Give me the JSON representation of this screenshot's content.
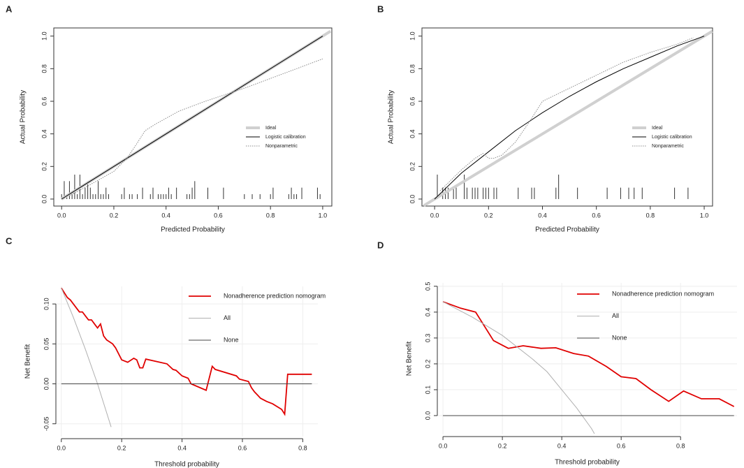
{
  "chart_data": [
    {
      "panel": "A",
      "type": "calibration",
      "xlabel": "Predicted Probability",
      "ylabel": "Actual Probability",
      "xlim": [
        -0.03,
        1.035
      ],
      "ylim": [
        -0.043,
        1.05
      ],
      "xticks": [
        {
          "value": 0,
          "label": "0.0"
        },
        0.2,
        0.4,
        0.6,
        0.8,
        {
          "value": 1,
          "label": "1.0"
        }
      ],
      "yticks": [
        {
          "value": 0,
          "label": "0.0"
        },
        0.2,
        0.4,
        0.6,
        0.8,
        {
          "value": 1,
          "label": "1.0"
        }
      ],
      "series": [
        {
          "name": "Ideal",
          "color": "#d0d0d0",
          "style": "thick",
          "x": [
            0,
            1.03
          ],
          "values": [
            0,
            1.03
          ]
        },
        {
          "name": "Logistic calibration",
          "color": "#000000",
          "style": "solid",
          "x": [
            0,
            0.5,
            1.0
          ],
          "values": [
            0,
            0.5,
            1.0
          ]
        },
        {
          "name": "Nonparametric",
          "color": "#8c8c8c",
          "style": "dotted",
          "x": [
            0.03,
            0.1,
            0.2,
            0.25,
            0.28,
            0.32,
            0.36,
            0.45,
            0.55,
            0.7,
            0.85,
            1.0
          ],
          "values": [
            0.02,
            0.08,
            0.17,
            0.25,
            0.32,
            0.42,
            0.46,
            0.54,
            0.6,
            0.68,
            0.77,
            0.86
          ]
        }
      ],
      "rug": {
        "x": [
          0.0,
          0.01,
          0.02,
          0.03,
          0.04,
          0.05,
          0.06,
          0.07,
          0.08,
          0.09,
          0.1,
          0.11,
          0.12,
          0.13,
          0.14,
          0.15,
          0.16,
          0.17,
          0.18,
          0.23,
          0.24,
          0.26,
          0.27,
          0.29,
          0.31,
          0.34,
          0.35,
          0.37,
          0.38,
          0.39,
          0.4,
          0.41,
          0.42,
          0.44,
          0.48,
          0.49,
          0.5,
          0.51,
          0.56,
          0.62,
          0.7,
          0.73,
          0.76,
          0.8,
          0.81,
          0.87,
          0.88,
          0.89,
          0.9,
          0.92,
          0.98,
          0.99
        ],
        "values": [
          0.03,
          0.11,
          0.03,
          0.11,
          0.03,
          0.15,
          0.03,
          0.15,
          0.03,
          0.07,
          0.11,
          0.07,
          0.03,
          0.03,
          0.11,
          0.03,
          0.03,
          0.07,
          0.03,
          0.03,
          0.07,
          0.03,
          0.03,
          0.03,
          0.07,
          0.03,
          0.07,
          0.03,
          0.03,
          0.03,
          0.03,
          0.07,
          0.03,
          0.07,
          0.03,
          0.03,
          0.07,
          0.11,
          0.07,
          0.07,
          0.03,
          0.03,
          0.03,
          0.03,
          0.07,
          0.03,
          0.07,
          0.03,
          0.03,
          0.07,
          0.07,
          0.03
        ]
      }
    },
    {
      "panel": "B",
      "type": "calibration",
      "xlabel": "Predicted Probability",
      "ylabel": "Actual Probability",
      "xlim": [
        -0.047,
        1.031
      ],
      "ylim": [
        -0.043,
        1.05
      ],
      "xticks": [
        {
          "value": 0,
          "label": "0.0"
        },
        0.2,
        0.4,
        0.6,
        0.8,
        {
          "value": 1,
          "label": "1.0"
        }
      ],
      "yticks": [
        {
          "value": 0,
          "label": "0.0"
        },
        0.2,
        0.4,
        0.6,
        0.8,
        {
          "value": 1,
          "label": "1.0"
        }
      ],
      "series": [
        {
          "name": "Ideal",
          "color": "#d0d0d0",
          "style": "thick",
          "x": [
            -0.04,
            1.03
          ],
          "values": [
            -0.04,
            1.03
          ]
        },
        {
          "name": "Logistic calibration",
          "color": "#000000",
          "style": "solid",
          "x": [
            0,
            0.05,
            0.1,
            0.2,
            0.3,
            0.4,
            0.5,
            0.6,
            0.7,
            0.8,
            0.9,
            1.0
          ],
          "values": [
            0,
            0.08,
            0.16,
            0.29,
            0.42,
            0.53,
            0.63,
            0.72,
            0.8,
            0.87,
            0.94,
            1.0
          ]
        },
        {
          "name": "Nonparametric",
          "color": "#8c8c8c",
          "style": "dotted",
          "x": [
            0.02,
            0.1,
            0.15,
            0.18,
            0.2,
            0.22,
            0.25,
            0.3,
            0.35,
            0.4,
            0.5,
            0.6,
            0.7,
            0.8,
            0.9,
            0.96
          ],
          "values": [
            0.05,
            0.18,
            0.25,
            0.28,
            0.25,
            0.25,
            0.27,
            0.35,
            0.47,
            0.6,
            0.68,
            0.76,
            0.84,
            0.9,
            0.95,
            0.99
          ]
        }
      ],
      "rug": {
        "x": [
          0.01,
          0.03,
          0.04,
          0.05,
          0.07,
          0.08,
          0.11,
          0.12,
          0.14,
          0.15,
          0.16,
          0.18,
          0.19,
          0.2,
          0.22,
          0.23,
          0.31,
          0.36,
          0.37,
          0.45,
          0.46,
          0.53,
          0.64,
          0.69,
          0.72,
          0.74,
          0.77,
          0.89,
          0.94
        ],
        "values": [
          0.15,
          0.07,
          0.07,
          0.07,
          0.07,
          0.07,
          0.15,
          0.07,
          0.07,
          0.07,
          0.07,
          0.07,
          0.07,
          0.07,
          0.07,
          0.07,
          0.07,
          0.07,
          0.07,
          0.07,
          0.15,
          0.07,
          0.07,
          0.07,
          0.07,
          0.07,
          0.07,
          0.07,
          0.07
        ]
      }
    },
    {
      "panel": "C",
      "type": "decision",
      "xlabel": "Threshold probability",
      "ylabel": "Net Benefit",
      "xlim": [
        -0.018,
        0.85
      ],
      "ylim": [
        -0.066,
        0.122
      ],
      "grid": true,
      "xticks": [
        {
          "value": 0,
          "label": "0.0"
        },
        0.2,
        0.4,
        0.6,
        0.8
      ],
      "yticks": [
        -0.05,
        {
          "value": 0,
          "label": "0.00"
        },
        0.05,
        {
          "value": 0.1,
          "label": "0.10"
        }
      ],
      "series": [
        {
          "name": "Nonadherence prediction nomogram",
          "color": "#e00000",
          "style": "bold",
          "x": [
            0,
            0.02,
            0.03,
            0.05,
            0.06,
            0.07,
            0.08,
            0.09,
            0.1,
            0.11,
            0.12,
            0.13,
            0.14,
            0.15,
            0.17,
            0.18,
            0.2,
            0.22,
            0.24,
            0.25,
            0.26,
            0.27,
            0.28,
            0.35,
            0.37,
            0.38,
            0.4,
            0.42,
            0.43,
            0.48,
            0.5,
            0.51,
            0.58,
            0.59,
            0.62,
            0.63,
            0.64,
            0.65,
            0.66,
            0.68,
            0.7,
            0.73,
            0.74,
            0.75,
            0.83
          ],
          "values": [
            0.12,
            0.108,
            0.105,
            0.095,
            0.09,
            0.09,
            0.085,
            0.08,
            0.08,
            0.075,
            0.07,
            0.075,
            0.06,
            0.055,
            0.05,
            0.045,
            0.03,
            0.027,
            0.032,
            0.03,
            0.02,
            0.02,
            0.031,
            0.025,
            0.018,
            0.017,
            0.01,
            0.007,
            0.0,
            -0.008,
            0.022,
            0.018,
            0.01,
            0.006,
            0.003,
            -0.005,
            -0.01,
            -0.014,
            -0.018,
            -0.022,
            -0.025,
            -0.032,
            -0.038,
            0.012,
            0.012
          ]
        },
        {
          "name": "All",
          "color": "#b0b0b0",
          "style": "solid",
          "x": [
            0,
            0.04,
            0.08,
            0.12,
            0.165
          ],
          "values": [
            0.12,
            0.083,
            0.043,
            0.0,
            -0.054
          ]
        },
        {
          "name": "None",
          "color": "#444444",
          "style": "solid",
          "x": [
            0,
            0.83
          ],
          "values": [
            0,
            0
          ]
        }
      ]
    },
    {
      "panel": "D",
      "type": "decision",
      "xlabel": "Threshold probability",
      "ylabel": "Net Benefit",
      "xlim": [
        -0.019,
        0.99
      ],
      "ylim": [
        -0.073,
        0.513
      ],
      "grid": true,
      "xticks": [
        {
          "value": 0,
          "label": "0.0"
        },
        0.2,
        0.4,
        0.6,
        0.8
      ],
      "yticks": [
        {
          "value": 0,
          "label": "0.0"
        },
        0.1,
        0.2,
        0.3,
        0.4,
        0.5
      ],
      "series": [
        {
          "name": "Nonadherence prediction nomogram",
          "color": "#e00000",
          "style": "bold",
          "x": [
            0,
            0.06,
            0.11,
            0.17,
            0.22,
            0.27,
            0.33,
            0.38,
            0.44,
            0.49,
            0.55,
            0.6,
            0.65,
            0.7,
            0.76,
            0.81,
            0.87,
            0.93,
            0.98
          ],
          "values": [
            0.44,
            0.415,
            0.4,
            0.29,
            0.26,
            0.27,
            0.26,
            0.262,
            0.24,
            0.23,
            0.19,
            0.15,
            0.143,
            0.1,
            0.055,
            0.095,
            0.065,
            0.065,
            0.035
          ]
        },
        {
          "name": "All",
          "color": "#b0b0b0",
          "style": "solid",
          "x": [
            0,
            0.1,
            0.2,
            0.3,
            0.35,
            0.4,
            0.45,
            0.5,
            0.51
          ],
          "values": [
            0.44,
            0.38,
            0.31,
            0.22,
            0.17,
            0.1,
            0.03,
            -0.05,
            -0.07
          ]
        },
        {
          "name": "None",
          "color": "#444444",
          "style": "solid",
          "x": [
            0,
            0.98
          ],
          "values": [
            0,
            0
          ]
        }
      ]
    }
  ]
}
